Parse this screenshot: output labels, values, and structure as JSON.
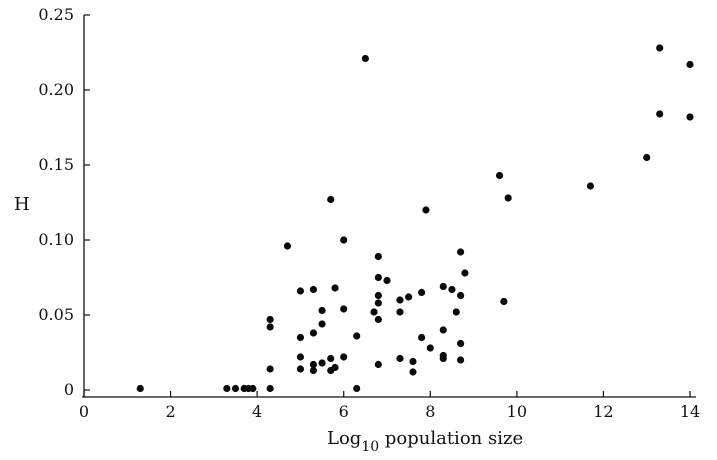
{
  "chart_data": {
    "type": "scatter",
    "title": "",
    "xlabel": "Log",
    "xlabel_sub": "10",
    "xlabel_suffix": " population size",
    "ylabel": "H",
    "xlim": [
      0,
      14
    ],
    "ylim": [
      0,
      0.25
    ],
    "xticks": [
      0,
      2,
      4,
      6,
      8,
      10,
      12,
      14
    ],
    "xtick_labels": [
      "0",
      "2",
      "4",
      "6",
      "8",
      "10",
      "12",
      "14"
    ],
    "yticks": [
      0,
      0.05,
      0.1,
      0.15,
      0.2,
      0.25
    ],
    "ytick_labels": [
      "0",
      "0.05",
      "0.10",
      "0.15",
      "0.20",
      "0.25"
    ],
    "grid": false,
    "points": [
      [
        1.3,
        0.001
      ],
      [
        3.3,
        0.001
      ],
      [
        3.5,
        0.001
      ],
      [
        3.7,
        0.001
      ],
      [
        3.8,
        0.001
      ],
      [
        3.9,
        0.001
      ],
      [
        4.3,
        0.001
      ],
      [
        4.3,
        0.014
      ],
      [
        4.3,
        0.042
      ],
      [
        4.3,
        0.047
      ],
      [
        4.7,
        0.096
      ],
      [
        5.0,
        0.014
      ],
      [
        5.0,
        0.022
      ],
      [
        5.0,
        0.035
      ],
      [
        5.0,
        0.066
      ],
      [
        5.3,
        0.013
      ],
      [
        5.3,
        0.017
      ],
      [
        5.3,
        0.038
      ],
      [
        5.3,
        0.067
      ],
      [
        5.5,
        0.018
      ],
      [
        5.5,
        0.044
      ],
      [
        5.5,
        0.053
      ],
      [
        5.7,
        0.013
      ],
      [
        5.7,
        0.021
      ],
      [
        5.7,
        0.127
      ],
      [
        5.8,
        0.015
      ],
      [
        5.8,
        0.068
      ],
      [
        6.0,
        0.022
      ],
      [
        6.0,
        0.054
      ],
      [
        6.0,
        0.1
      ],
      [
        6.3,
        0.001
      ],
      [
        6.3,
        0.036
      ],
      [
        6.5,
        0.221
      ],
      [
        6.7,
        0.052
      ],
      [
        6.8,
        0.017
      ],
      [
        6.8,
        0.047
      ],
      [
        6.8,
        0.058
      ],
      [
        6.8,
        0.063
      ],
      [
        6.8,
        0.075
      ],
      [
        6.8,
        0.089
      ],
      [
        7.0,
        0.073
      ],
      [
        7.3,
        0.021
      ],
      [
        7.3,
        0.052
      ],
      [
        7.3,
        0.06
      ],
      [
        7.5,
        0.062
      ],
      [
        7.6,
        0.012
      ],
      [
        7.6,
        0.019
      ],
      [
        7.8,
        0.035
      ],
      [
        7.8,
        0.065
      ],
      [
        7.9,
        0.12
      ],
      [
        8.0,
        0.028
      ],
      [
        8.3,
        0.021
      ],
      [
        8.3,
        0.023
      ],
      [
        8.3,
        0.04
      ],
      [
        8.3,
        0.069
      ],
      [
        8.5,
        0.067
      ],
      [
        8.6,
        0.052
      ],
      [
        8.7,
        0.02
      ],
      [
        8.7,
        0.031
      ],
      [
        8.7,
        0.063
      ],
      [
        8.7,
        0.092
      ],
      [
        8.8,
        0.078
      ],
      [
        9.6,
        0.143
      ],
      [
        9.7,
        0.059
      ],
      [
        9.8,
        0.128
      ],
      [
        11.7,
        0.136
      ],
      [
        13.0,
        0.155
      ],
      [
        13.3,
        0.184
      ],
      [
        13.3,
        0.228
      ],
      [
        14.0,
        0.182
      ],
      [
        14.0,
        0.217
      ]
    ]
  }
}
